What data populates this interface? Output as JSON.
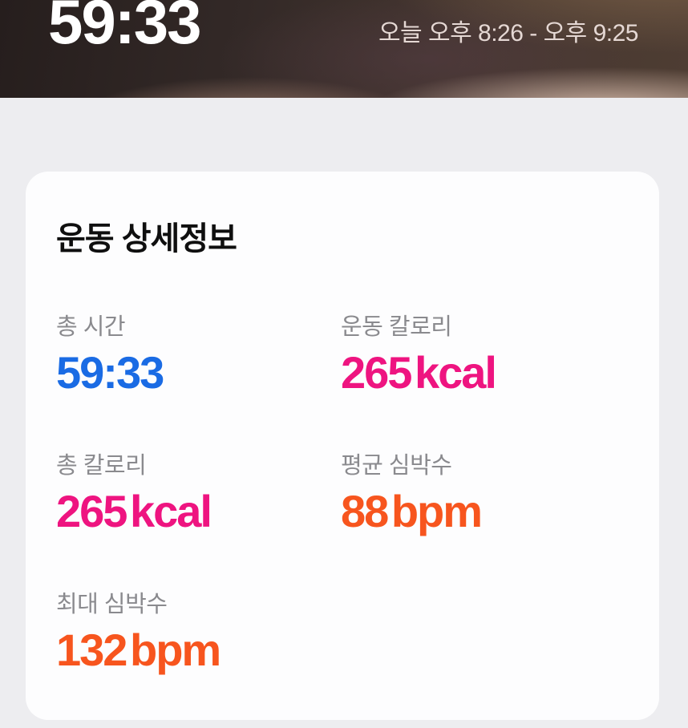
{
  "header": {
    "duration": "59:33",
    "session_time": "오늘 오후 8:26 - 오후 9:25"
  },
  "details_card": {
    "title": "운동 상세정보",
    "stats": [
      {
        "label": "총 시간",
        "value": "59:33",
        "color": "#1a6be4"
      },
      {
        "label": "운동 칼로리",
        "value": "265 kcal",
        "color": "#ee1480"
      },
      {
        "label": "총 칼로리",
        "value": "265 kcal",
        "color": "#ee1480"
      },
      {
        "label": "평균 심박수",
        "value": "88 bpm",
        "color": "#f7551e"
      },
      {
        "label": "최대 심박수",
        "value": "132 bpm",
        "color": "#f7551e"
      }
    ]
  },
  "colors": {
    "accent_blue": "#1a6be4",
    "accent_pink": "#ee1480",
    "accent_orange": "#f7551e",
    "page_background": "#ededf0",
    "card_background": "#fdfdfe",
    "label_gray": "#8a8a8e",
    "title_black": "#0f0f0f",
    "header_text": "#ffffff",
    "header_subtext": "#e5d8d4"
  }
}
